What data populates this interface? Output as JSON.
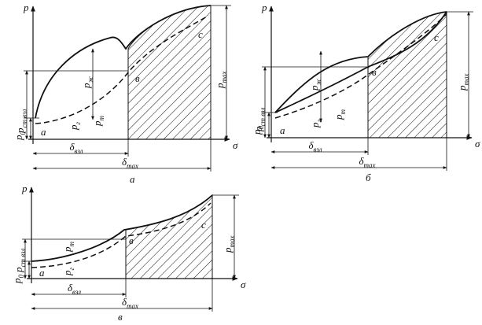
{
  "panels": [
    {
      "caption": "а",
      "axis_y": "p",
      "axis_x": "σ",
      "point_a": "a",
      "point_b": "в",
      "point_c": "c",
      "p0": {
        "main": "p",
        "sub": "0"
      },
      "p_st": {
        "main": "p",
        "sub": "ст взл"
      },
      "p_max": {
        "main": "p",
        "sub": "max"
      },
      "p_zh": {
        "main": "p",
        "sub": "ж"
      },
      "p_g": {
        "main": "p",
        "sub": "г"
      },
      "p_t": {
        "main": "p",
        "sub": "т"
      },
      "d_vzl": {
        "main": "δ",
        "sub": "взл"
      },
      "d_max": {
        "main": "δ",
        "sub": "max"
      }
    },
    {
      "caption": "б",
      "axis_y": "p",
      "axis_x": "σ",
      "point_a": "a",
      "point_b": "в",
      "point_c": "c",
      "p0": {
        "main": "p",
        "sub": "0"
      },
      "p_st": {
        "main": "p",
        "sub": "ст взл"
      },
      "p_max": {
        "main": "p",
        "sub": "max"
      },
      "p_zh": {
        "main": "p",
        "sub": "ж"
      },
      "p_g": {
        "main": "p",
        "sub": "г"
      },
      "p_t": {
        "main": "p",
        "sub": "т"
      },
      "d_vzl": {
        "main": "δ",
        "sub": "взл"
      },
      "d_max": {
        "main": "δ",
        "sub": "max"
      }
    },
    {
      "caption": "в",
      "axis_y": "p",
      "axis_x": "σ",
      "point_a": "a",
      "point_b": "в",
      "point_c": "c",
      "p0": {
        "main": "p",
        "sub": "0"
      },
      "p_st": {
        "main": "p",
        "sub": "ст взл"
      },
      "p_max": {
        "main": "p",
        "sub": "max"
      },
      "p_g": {
        "main": "p",
        "sub": "г"
      },
      "p_t": {
        "main": "p",
        "sub": "т"
      },
      "d_vzl": {
        "main": "δ",
        "sub": "взл"
      },
      "d_max": {
        "main": "δ",
        "sub": "max"
      }
    }
  ]
}
